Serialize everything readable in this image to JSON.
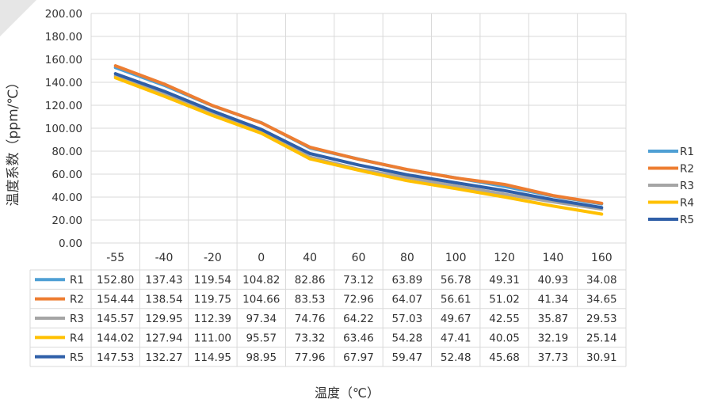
{
  "chart_data": {
    "type": "line",
    "title": "",
    "xlabel": "温度（℃）",
    "ylabel": "温度系数（ppm/℃）",
    "categories": [
      "-55",
      "-40",
      "-20",
      "0",
      "40",
      "60",
      "80",
      "100",
      "120",
      "140",
      "160"
    ],
    "ylim": [
      0,
      200
    ],
    "y_ticks": [
      "0.00",
      "20.00",
      "40.00",
      "60.00",
      "80.00",
      "100.00",
      "120.00",
      "140.00",
      "160.00",
      "180.00",
      "200.00"
    ],
    "grid": true,
    "legend_position": "right",
    "data_table": true,
    "series": [
      {
        "name": "R1",
        "color": "#4e9fd4",
        "values": [
          152.8,
          137.43,
          119.54,
          104.82,
          82.86,
          73.12,
          63.89,
          56.78,
          49.31,
          40.93,
          34.08
        ],
        "labels": [
          "152.80",
          "137.43",
          "119.54",
          "104.82",
          "82.86",
          "73.12",
          "63.89",
          "56.78",
          "49.31",
          "40.93",
          "34.08"
        ]
      },
      {
        "name": "R2",
        "color": "#ed7d31",
        "values": [
          154.44,
          138.54,
          119.75,
          104.66,
          83.53,
          72.96,
          64.07,
          56.61,
          51.02,
          41.34,
          34.65
        ],
        "labels": [
          "154.44",
          "138.54",
          "119.75",
          "104.66",
          "83.53",
          "72.96",
          "64.07",
          "56.61",
          "51.02",
          "41.34",
          "34.65"
        ]
      },
      {
        "name": "R3",
        "color": "#a5a5a5",
        "values": [
          145.57,
          129.95,
          112.39,
          97.34,
          74.76,
          64.22,
          57.03,
          49.67,
          42.55,
          35.87,
          29.53
        ],
        "labels": [
          "145.57",
          "129.95",
          "112.39",
          "97.34",
          "74.76",
          "64.22",
          "57.03",
          "49.67",
          "42.55",
          "35.87",
          "29.53"
        ]
      },
      {
        "name": "R4",
        "color": "#ffc000",
        "values": [
          144.02,
          127.94,
          111.0,
          95.57,
          73.32,
          63.46,
          54.28,
          47.41,
          40.05,
          32.19,
          25.14
        ],
        "labels": [
          "144.02",
          "127.94",
          "111.00",
          "95.57",
          "73.32",
          "63.46",
          "54.28",
          "47.41",
          "40.05",
          "32.19",
          "25.14"
        ]
      },
      {
        "name": "R5",
        "color": "#2f5fa8",
        "values": [
          147.53,
          132.27,
          114.95,
          98.95,
          77.96,
          67.97,
          59.47,
          52.48,
          45.68,
          37.73,
          30.91
        ],
        "labels": [
          "147.53",
          "132.27",
          "114.95",
          "98.95",
          "77.96",
          "67.97",
          "59.47",
          "52.48",
          "45.68",
          "37.73",
          "30.91"
        ]
      }
    ]
  }
}
